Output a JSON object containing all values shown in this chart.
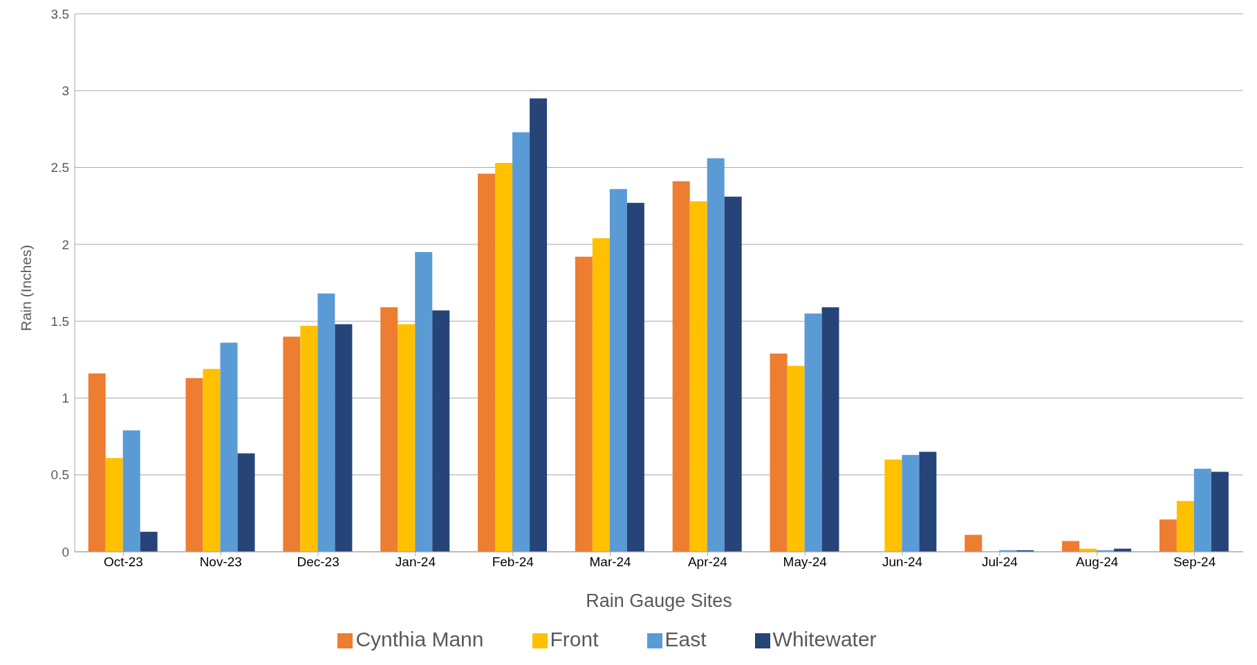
{
  "chart_data": {
    "type": "bar",
    "xlabel": "Rain Gauge Sites",
    "ylabel": "Rain (Inches)",
    "categories": [
      "Oct-23",
      "Nov-23",
      "Dec-23",
      "Jan-24",
      "Feb-24",
      "Mar-24",
      "Apr-24",
      "May-24",
      "Jun-24",
      "Jul-24",
      "Aug-24",
      "Sep-24"
    ],
    "series": [
      {
        "name": "Cynthia Mann",
        "color": "#ed7d31",
        "values": [
          1.16,
          1.13,
          1.4,
          1.59,
          2.46,
          1.92,
          2.41,
          1.29,
          null,
          0.11,
          0.07,
          0.21
        ]
      },
      {
        "name": "Front",
        "color": "#ffc000",
        "values": [
          0.61,
          1.19,
          1.47,
          1.48,
          2.53,
          2.04,
          2.28,
          1.21,
          0.6,
          null,
          0.02,
          0.33
        ]
      },
      {
        "name": "East",
        "color": "#5b9bd5",
        "values": [
          0.79,
          1.36,
          1.68,
          1.95,
          2.73,
          2.36,
          2.56,
          1.55,
          0.63,
          0.01,
          0.01,
          0.54
        ]
      },
      {
        "name": "Whitewater",
        "color": "#264478",
        "values": [
          0.13,
          0.64,
          1.48,
          1.57,
          2.95,
          2.27,
          2.31,
          1.59,
          0.65,
          0.01,
          0.02,
          0.52
        ]
      }
    ],
    "ylim": [
      0,
      3.5
    ],
    "yticks": [
      0,
      0.5,
      1,
      1.5,
      2,
      2.5,
      3,
      3.5
    ],
    "grid": "y",
    "legend": "bottom"
  }
}
